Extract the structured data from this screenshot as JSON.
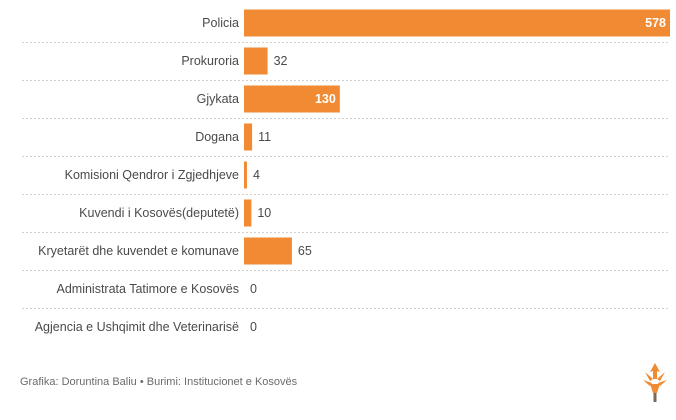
{
  "chart_data": {
    "type": "bar",
    "orientation": "horizontal",
    "categories": [
      "Policia",
      "Prokuroria",
      "Gjykata",
      "Dogana",
      "Komisioni Qendror i Zgjedhjeve",
      "Kuvendi i Kosovës(deputetë)",
      "Kryetarët dhe kuvendet e komunave",
      "Administrata Tatimore e Kosovës",
      "Agjencia e Ushqimit dhe Veterinarisë"
    ],
    "values": [
      578,
      32,
      130,
      11,
      4,
      10,
      65,
      0,
      0
    ],
    "xlim": [
      0,
      578
    ],
    "grid": false,
    "bar_color": "#f08a33"
  },
  "footer": {
    "credit": "Grafika: Doruntina Baliu • Burimi: Institucionet e Kosovës"
  },
  "colors": {
    "bar": "#f08a33",
    "separator": "#cfcfcf",
    "text": "#4a4a4a"
  },
  "logo": {
    "icon": "rfe-rl-torch-logo"
  }
}
